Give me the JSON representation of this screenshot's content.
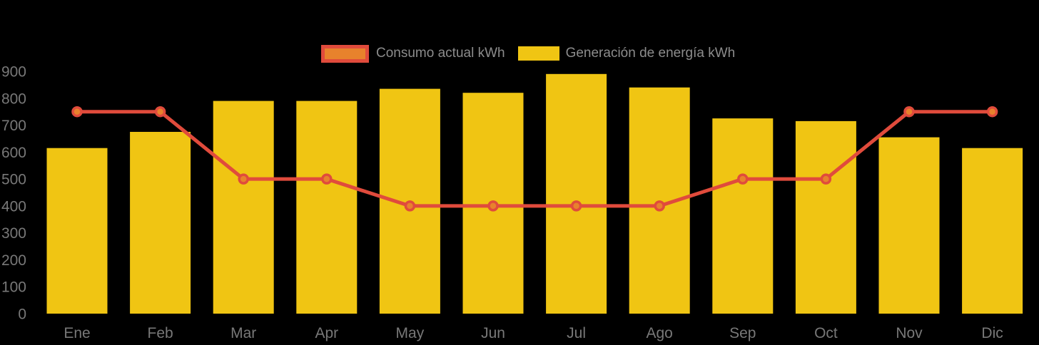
{
  "chart_data": {
    "type": "bar",
    "title": "",
    "xlabel": "",
    "ylabel": "",
    "categories": [
      "Ene",
      "Feb",
      "Mar",
      "Apr",
      "May",
      "Jun",
      "Jul",
      "Ago",
      "Sep",
      "Oct",
      "Nov",
      "Dic"
    ],
    "series": [
      {
        "name": "Consumo actual kWh",
        "type": "line",
        "color": "#E04B3C",
        "marker_fill": "#E8822C",
        "values": [
          750,
          750,
          500,
          500,
          400,
          400,
          400,
          400,
          500,
          500,
          750,
          750
        ]
      },
      {
        "name": "Generación de energía kWh",
        "type": "bar",
        "color": "#F0C513",
        "values": [
          615,
          675,
          790,
          790,
          835,
          820,
          890,
          840,
          725,
          715,
          655,
          615
        ]
      }
    ],
    "ylim": [
      0,
      900
    ],
    "yticks": [
      0,
      100,
      200,
      300,
      400,
      500,
      600,
      700,
      800,
      900
    ],
    "grid": false,
    "legend_position": "top-center",
    "background_color": "#000000",
    "axis_label_color": "#787878",
    "legend_text_color": "#8C8C8C"
  }
}
